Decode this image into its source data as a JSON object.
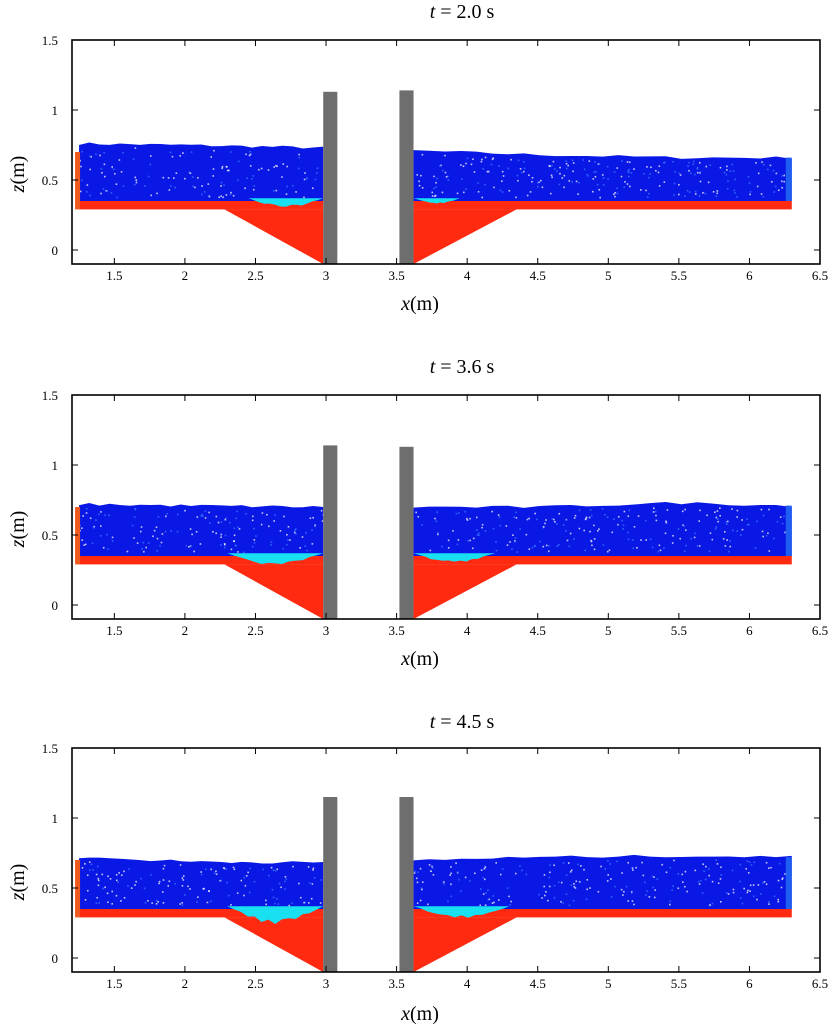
{
  "chart_data": [
    {
      "type": "scatter",
      "title": "t = 2.0 s",
      "title_var": "t",
      "title_rest": " = 2.0 s",
      "xlabel": "x(m)",
      "xlabel_var": "x",
      "xlabel_rest": "(m)",
      "ylabel": "z(m)",
      "ylabel_var": "z",
      "ylabel_rest": "(m)",
      "xlim": [
        1.2,
        6.5
      ],
      "ylim": [
        -0.1,
        1.5
      ],
      "xticks": [
        "1.5",
        "2",
        "2.5",
        "3",
        "3.5",
        "4",
        "4.5",
        "5",
        "5.5",
        "6",
        "6.5"
      ],
      "yticks": [
        "0",
        "0.5",
        "1",
        "1.5"
      ],
      "bed_level": 0.35,
      "scour_holes": [
        {
          "x_start": 2.28,
          "x_end": 2.98,
          "z_bottom": -0.1
        },
        {
          "x_start": 3.62,
          "x_end": 4.35,
          "z_bottom": -0.1
        }
      ],
      "piers": [
        {
          "x_start": 2.98,
          "x_end": 3.08,
          "z_top": 1.13
        },
        {
          "x_start": 3.52,
          "x_end": 3.62,
          "z_top": 1.14
        }
      ],
      "water_surface": {
        "x": [
          1.25,
          2.0,
          2.98,
          3.62,
          4.5,
          5.5,
          6.3
        ],
        "z": [
          0.76,
          0.75,
          0.73,
          0.71,
          0.68,
          0.66,
          0.66
        ]
      },
      "suspended_sediment": [
        {
          "x": [
            2.45,
            2.98
          ],
          "z_bottom": 0.3
        },
        {
          "x": [
            3.62,
            3.95
          ],
          "z_bottom": 0.33
        }
      ],
      "colors": {
        "water": "#0a18e6",
        "water_edge": "#1e5ff2",
        "bed": "#ff2a10",
        "bed_edge": "#f05a1e",
        "suspended": "#18e0f0",
        "pier": "#6e6e6e"
      }
    },
    {
      "type": "scatter",
      "title": "t = 3.6 s",
      "title_var": "t",
      "title_rest": " = 3.6 s",
      "xlabel": "x(m)",
      "xlabel_var": "x",
      "xlabel_rest": "(m)",
      "ylabel": "z(m)",
      "ylabel_var": "z",
      "ylabel_rest": "(m)",
      "xlim": [
        1.2,
        6.5
      ],
      "ylim": [
        -0.1,
        1.5
      ],
      "xticks": [
        "1.5",
        "2",
        "2.5",
        "3",
        "3.5",
        "4",
        "4.5",
        "5",
        "5.5",
        "6",
        "6.5"
      ],
      "yticks": [
        "0",
        "0.5",
        "1",
        "1.5"
      ],
      "bed_level": 0.35,
      "scour_holes": [
        {
          "x_start": 2.28,
          "x_end": 2.98,
          "z_bottom": -0.1
        },
        {
          "x_start": 3.62,
          "x_end": 4.35,
          "z_bottom": -0.1
        }
      ],
      "piers": [
        {
          "x_start": 2.98,
          "x_end": 3.08,
          "z_top": 1.14
        },
        {
          "x_start": 3.52,
          "x_end": 3.62,
          "z_top": 1.13
        }
      ],
      "water_surface": {
        "x": [
          1.25,
          2.0,
          2.98,
          3.62,
          4.5,
          5.5,
          6.3
        ],
        "z": [
          0.72,
          0.71,
          0.7,
          0.7,
          0.7,
          0.73,
          0.71
        ]
      },
      "suspended_sediment": [
        {
          "x": [
            2.3,
            2.98
          ],
          "z_bottom": 0.28
        },
        {
          "x": [
            3.62,
            4.2
          ],
          "z_bottom": 0.3
        }
      ],
      "colors": {
        "water": "#0a18e6",
        "water_edge": "#1e5ff2",
        "bed": "#ff2a10",
        "bed_edge": "#f05a1e",
        "suspended": "#18e0f0",
        "pier": "#6e6e6e"
      }
    },
    {
      "type": "scatter",
      "title": "t = 4.5 s",
      "title_var": "t",
      "title_rest": " = 4.5 s",
      "xlabel": "x(m)",
      "xlabel_var": "x",
      "xlabel_rest": "(m)",
      "ylabel": "z(m)",
      "ylabel_var": "z",
      "ylabel_rest": "(m)",
      "xlim": [
        1.2,
        6.5
      ],
      "ylim": [
        -0.1,
        1.5
      ],
      "xticks": [
        "1.5",
        "2",
        "2.5",
        "3",
        "3.5",
        "4",
        "4.5",
        "5",
        "5.5",
        "6",
        "6.5"
      ],
      "yticks": [
        "0",
        "0.5",
        "1",
        "1.5"
      ],
      "bed_level": 0.35,
      "scour_holes": [
        {
          "x_start": 2.28,
          "x_end": 2.98,
          "z_bottom": -0.1
        },
        {
          "x_start": 3.62,
          "x_end": 4.35,
          "z_bottom": -0.1
        }
      ],
      "piers": [
        {
          "x_start": 2.98,
          "x_end": 3.08,
          "z_top": 1.15
        },
        {
          "x_start": 3.52,
          "x_end": 3.62,
          "z_top": 1.15
        }
      ],
      "water_surface": {
        "x": [
          1.25,
          2.0,
          2.98,
          3.62,
          4.5,
          5.5,
          6.3
        ],
        "z": [
          0.72,
          0.69,
          0.68,
          0.7,
          0.72,
          0.73,
          0.72
        ]
      },
      "suspended_sediment": [
        {
          "x": [
            2.3,
            2.98
          ],
          "z_bottom": 0.24
        },
        {
          "x": [
            3.62,
            4.3
          ],
          "z_bottom": 0.28
        }
      ],
      "colors": {
        "water": "#0a18e6",
        "water_edge": "#1e5ff2",
        "bed": "#ff2a10",
        "bed_edge": "#f05a1e",
        "suspended": "#18e0f0",
        "pier": "#6e6e6e"
      }
    }
  ]
}
